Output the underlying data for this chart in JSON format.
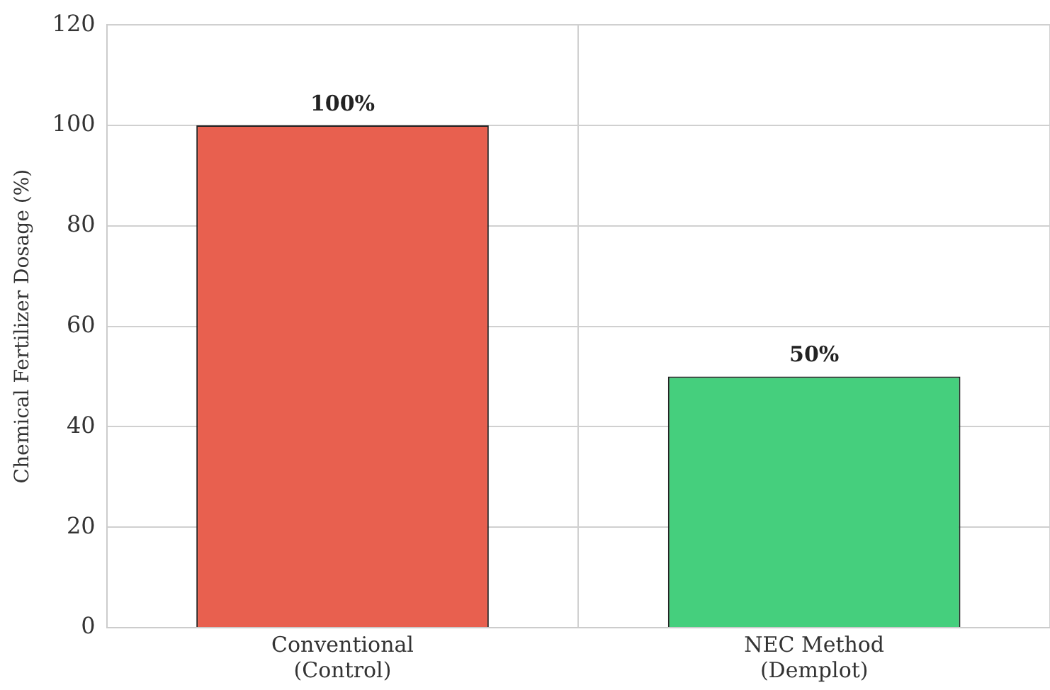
{
  "chart_data": {
    "type": "bar",
    "ylabel": "Chemical Fertilizer Dosage (%)",
    "categories": [
      "Conventional\n(Control)",
      "NEC Method\n(Demplot)"
    ],
    "values": [
      100,
      50
    ],
    "colors": [
      "#e8604f",
      "#45cf7d"
    ],
    "value_labels": [
      "100%",
      "50%"
    ],
    "ylim": [
      0,
      120
    ],
    "yticks": [
      0,
      20,
      40,
      60,
      80,
      100,
      120
    ],
    "grid": true,
    "legend": false
  }
}
